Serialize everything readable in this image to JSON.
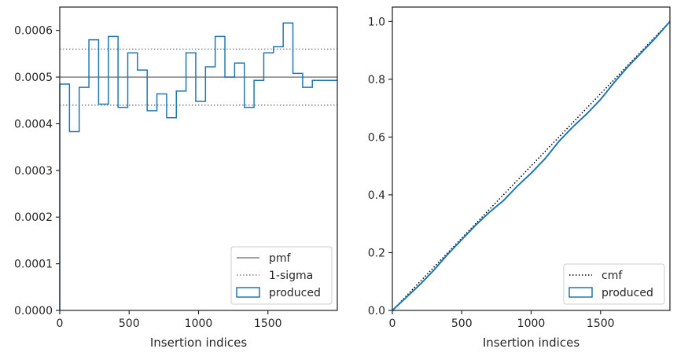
{
  "chart_data": [
    {
      "type": "step",
      "xlabel": "Insertion indices",
      "ylabel": "",
      "xlim": [
        0,
        2000
      ],
      "ylim": [
        0,
        0.00065
      ],
      "xticks": [
        0,
        500,
        1000,
        1500
      ],
      "xtick_labels": [
        "0",
        "500",
        "1000",
        "1500"
      ],
      "yticks": [
        0,
        0.0001,
        0.0002,
        0.0003,
        0.0004,
        0.0005,
        0.0006
      ],
      "ytick_labels": [
        "0.0000",
        "0.0001",
        "0.0002",
        "0.0003",
        "0.0004",
        "0.0005",
        "0.0006"
      ],
      "legend_position": "lower-right",
      "series": [
        {
          "name": "pmf",
          "kind": "hline",
          "y": 0.0005,
          "color": "#808080",
          "style": "solid"
        },
        {
          "name": "1-sigma",
          "kind": "hlines",
          "y": [
            0.00044,
            0.00056
          ],
          "color": "#808080",
          "style": "dotted"
        },
        {
          "name": "produced",
          "kind": "histogram",
          "color": "#1f77b4",
          "bin_edges": [
            0,
            70,
            140,
            210,
            280,
            350,
            420,
            490,
            560,
            630,
            700,
            770,
            840,
            910,
            980,
            1050,
            1120,
            1190,
            1260,
            1330,
            1400,
            1470,
            1540,
            1610,
            1680,
            1750,
            1820,
            2000
          ],
          "values": [
            0.000485,
            0.000383,
            0.000478,
            0.00058,
            0.000442,
            0.000587,
            0.000435,
            0.000552,
            0.000515,
            0.000428,
            0.000464,
            0.000413,
            0.00047,
            0.000552,
            0.000448,
            0.000522,
            0.000587,
            0.0005,
            0.00053,
            0.000435,
            0.000493,
            0.000552,
            0.000565,
            0.000616,
            0.000508,
            0.000478,
            0.000493
          ]
        }
      ]
    },
    {
      "type": "line",
      "xlabel": "Insertion indices",
      "ylabel": "",
      "xlim": [
        0,
        2000
      ],
      "ylim": [
        0,
        1.05
      ],
      "xticks": [
        0,
        500,
        1000,
        1500
      ],
      "xtick_labels": [
        "0",
        "500",
        "1000",
        "1500"
      ],
      "yticks": [
        0,
        0.2,
        0.4,
        0.6,
        0.8,
        1.0
      ],
      "ytick_labels": [
        "0.0",
        "0.2",
        "0.4",
        "0.6",
        "0.8",
        "1.0"
      ],
      "legend_position": "lower-right",
      "series": [
        {
          "name": "cmf",
          "color": "#000000",
          "style": "dotted",
          "x": [
            0,
            2000
          ],
          "y": [
            0,
            1.0
          ]
        },
        {
          "name": "produced",
          "color": "#1f77b4",
          "style": "solid",
          "x": [
            0,
            100,
            200,
            300,
            400,
            500,
            600,
            700,
            800,
            900,
            1000,
            1100,
            1200,
            1300,
            1400,
            1500,
            1600,
            1700,
            1800,
            1900,
            2000
          ],
          "y": [
            0,
            0.045,
            0.09,
            0.14,
            0.195,
            0.245,
            0.295,
            0.34,
            0.38,
            0.43,
            0.475,
            0.525,
            0.585,
            0.635,
            0.68,
            0.73,
            0.79,
            0.845,
            0.895,
            0.945,
            1.0
          ]
        }
      ]
    }
  ]
}
